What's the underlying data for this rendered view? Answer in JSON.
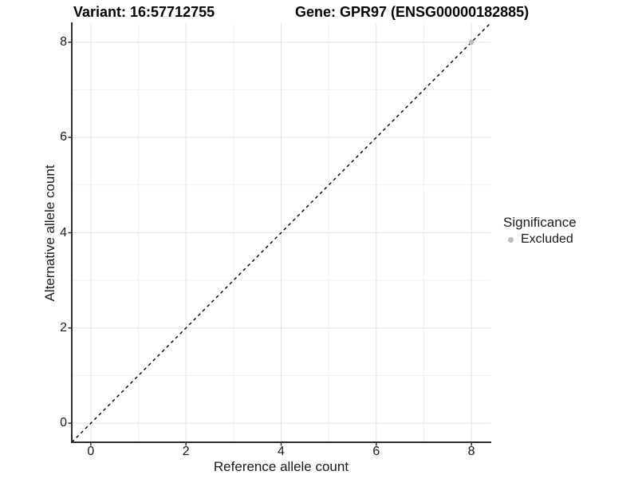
{
  "figure": {
    "title_left": "Variant: 16:57712755",
    "title_right": "Gene: GPR97 (ENSG00000182885)"
  },
  "chart_data": {
    "type": "scatter",
    "title_left": "Variant: 16:57712755",
    "title_right": "Gene: GPR97 (ENSG00000182885)",
    "xlabel": "Reference allele count",
    "ylabel": "Alternative allele count",
    "xlim": [
      -0.4,
      8.4
    ],
    "ylim": [
      -0.4,
      8.4
    ],
    "x_major_ticks": [
      0,
      2,
      4,
      6,
      8
    ],
    "y_major_ticks": [
      0,
      2,
      4,
      6,
      8
    ],
    "x_minor_ticks": [
      1,
      3,
      5,
      7
    ],
    "y_minor_ticks": [
      1,
      3,
      5,
      7
    ],
    "grid": {
      "major_color": "#e3e3e3",
      "minor_color": "#f0f0f0",
      "background": "#ffffff"
    },
    "axis_color": "#2e2e2e",
    "abline": {
      "slope": 1,
      "intercept": 0,
      "style": "dashed",
      "color": "#000000"
    },
    "series": [
      {
        "name": "Excluded",
        "color": "#bcbcbc",
        "points": [
          {
            "x": 8,
            "y": 8
          }
        ]
      }
    ],
    "legend": {
      "title": "Significance",
      "position": "right",
      "items": [
        {
          "label": "Excluded",
          "color": "#bcbcbc"
        }
      ]
    }
  }
}
